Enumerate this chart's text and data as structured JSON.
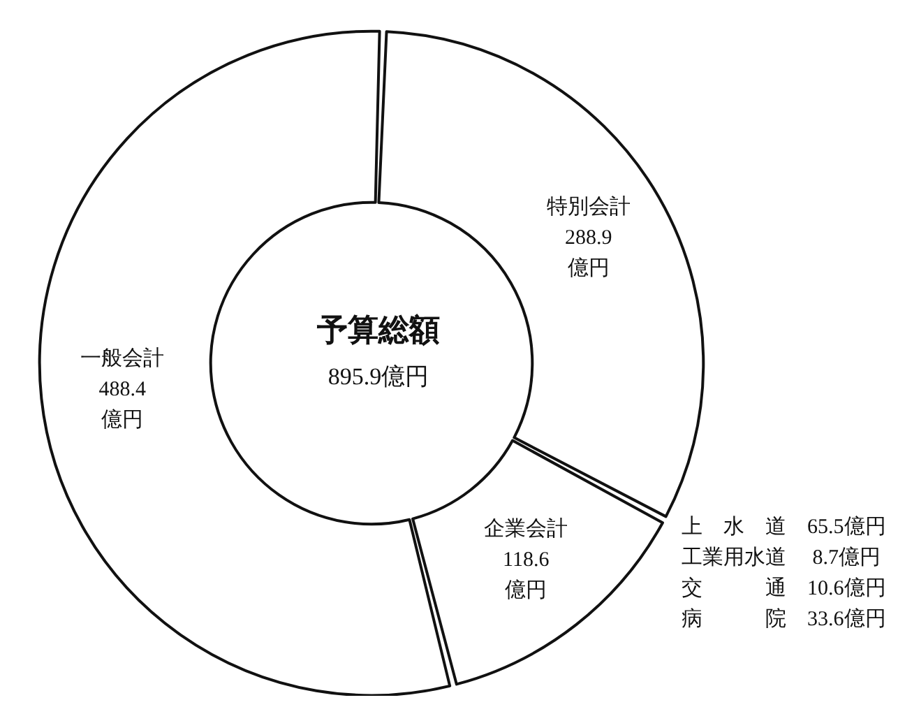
{
  "chart_data": {
    "type": "donut",
    "title": "予算総額",
    "subtitle": "895.9億円",
    "categories": [
      "特別会計",
      "企業会計",
      "一般会計"
    ],
    "values": [
      288.9,
      118.6,
      488.4
    ],
    "colors": [
      "#ffffff",
      "#ffffff",
      "#ffffff"
    ],
    "value_labels": [
      "288.9\n億円",
      "118.6\n億円",
      "488.4\n億円"
    ],
    "annotations": [
      "上　水　道　65.5億円",
      "工業用水道　 8.7億円",
      "交　　　通　10.6億円",
      "病　　　院　33.6億円"
    ],
    "legend": false
  }
}
